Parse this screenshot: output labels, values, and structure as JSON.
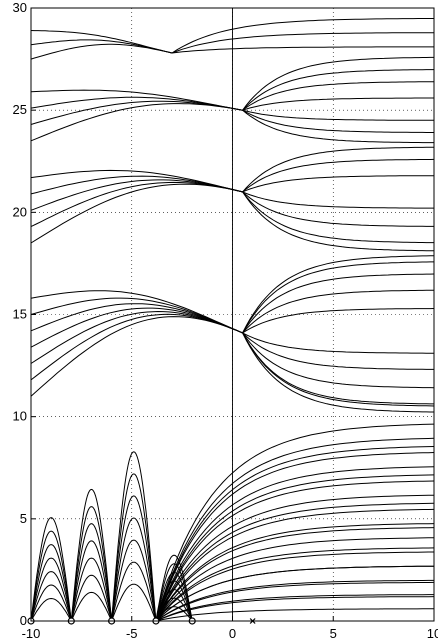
{
  "chart_data": {
    "type": "line",
    "title": "",
    "xlabel": "",
    "ylabel": "",
    "xlim": [
      -10,
      10
    ],
    "ylim": [
      0,
      30
    ],
    "xticks": [
      -10,
      -5,
      0,
      5,
      10
    ],
    "yticks": [
      0,
      5,
      10,
      15,
      20,
      25,
      30
    ],
    "xtick_labels": [
      "-10",
      "-5",
      "0",
      "5",
      "10"
    ],
    "ytick_labels": [
      "0",
      "5",
      "10",
      "15",
      "20",
      "25",
      "30"
    ],
    "grid": true,
    "zero_markers": [
      {
        "x": -10.0,
        "y": 0
      },
      {
        "x": -8.0,
        "y": 0
      },
      {
        "x": -6.0,
        "y": 0
      },
      {
        "x": -3.8,
        "y": 0
      },
      {
        "x": -2.0,
        "y": 0
      }
    ],
    "pole_markers": [
      {
        "x": 1.0,
        "y": 0
      }
    ],
    "convergence_points": [
      {
        "x": -3.8,
        "y": 0
      },
      {
        "x": 0.5,
        "y": 14.1
      },
      {
        "x": 0.5,
        "y": 21.0
      },
      {
        "x": 0.5,
        "y": 25.0
      }
    ],
    "asymptote_levels": [
      10.2,
      17.9,
      23.3,
      27.6
    ],
    "series": [
      {
        "values": [
          1.2,
          1.9,
          2.7,
          3.6,
          4.6,
          5.8,
          7.2,
          8.6
        ]
      },
      {
        "values": [
          10.6,
          11.4,
          12.3,
          13.1,
          15.3,
          16.2,
          17.0
        ]
      },
      {
        "values": [
          18.5,
          19.3,
          20.2,
          21.8,
          22.6
        ]
      },
      {
        "values": [
          23.9,
          24.5,
          25.6,
          26.4,
          27.0
        ]
      },
      {
        "values": [
          28.1,
          28.8,
          29.5
        ]
      }
    ]
  }
}
